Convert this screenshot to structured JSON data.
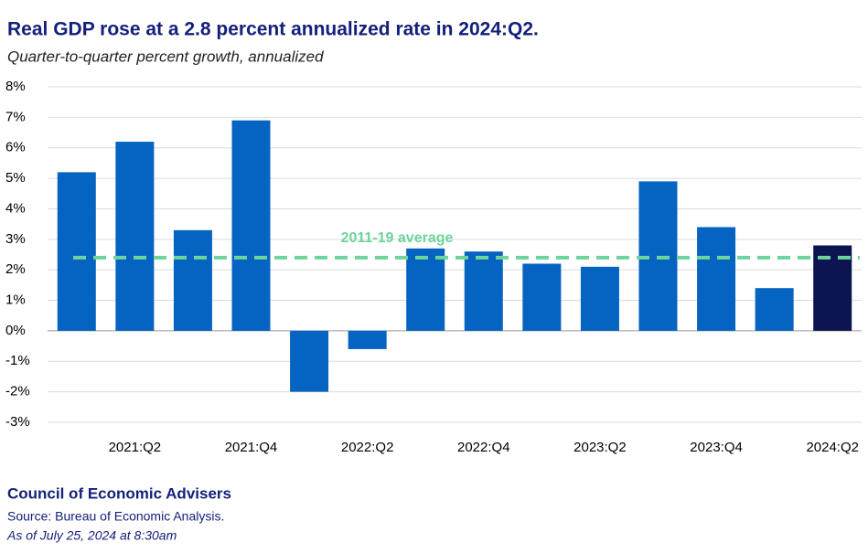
{
  "chart_data": {
    "type": "bar",
    "title": "Real GDP rose at a 2.8 percent annualized rate in 2024:Q2.",
    "subtitle": "Quarter-to-quarter percent growth, annualized",
    "categories": [
      null,
      "2021:Q2",
      null,
      "2021:Q4",
      null,
      "2022:Q2",
      null,
      "2022:Q4",
      null,
      "2023:Q2",
      null,
      "2023:Q4",
      null,
      "2024:Q2"
    ],
    "values": [
      5.2,
      6.2,
      3.3,
      6.9,
      -2.0,
      -0.6,
      2.7,
      2.6,
      2.2,
      2.1,
      4.9,
      3.4,
      1.4,
      2.8
    ],
    "colors": [
      "#0563c1",
      "#0563c1",
      "#0563c1",
      "#0563c1",
      "#0563c1",
      "#0563c1",
      "#0563c1",
      "#0563c1",
      "#0563c1",
      "#0563c1",
      "#0563c1",
      "#0563c1",
      "#0563c1",
      "#0c1552"
    ],
    "ylim": [
      -3,
      8
    ],
    "yticks": [
      {
        "value": -3,
        "label": "-3%"
      },
      {
        "value": -2,
        "label": "-2%"
      },
      {
        "value": -1,
        "label": "-1%"
      },
      {
        "value": 0,
        "label": "0%"
      },
      {
        "value": 1,
        "label": "1%"
      },
      {
        "value": 2,
        "label": "2%"
      },
      {
        "value": 3,
        "label": "3%"
      },
      {
        "value": 4,
        "label": "4%"
      },
      {
        "value": 5,
        "label": "5%"
      },
      {
        "value": 6,
        "label": "6%"
      },
      {
        "value": 7,
        "label": "7%"
      },
      {
        "value": 8,
        "label": "8%"
      }
    ],
    "grid": true,
    "annotations": [
      {
        "text": "2011-19 average",
        "value": 2.4,
        "color": "#6dd49c"
      }
    ],
    "footer": {
      "org": "Council of Economic Advisers",
      "source": "Source: Bureau of Economic Analysis.",
      "date": "As of July 25, 2024 at 8:30am"
    }
  }
}
